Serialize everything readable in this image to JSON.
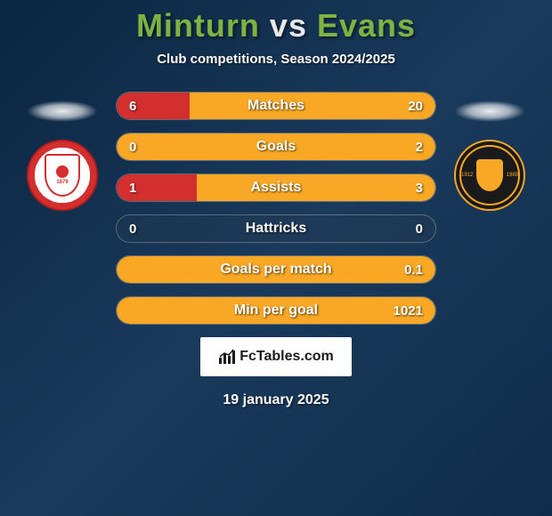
{
  "title": {
    "player1": "Minturn",
    "vs": "vs",
    "player2": "Evans"
  },
  "subtitle": "Club competitions, Season 2024/2025",
  "colors": {
    "player1_fill": "#d32f2f",
    "player2_fill": "#f9a825",
    "neutral_fill": "#6b6b6b"
  },
  "stats": [
    {
      "label": "Matches",
      "left_val": "6",
      "right_val": "20",
      "left_pct": 23,
      "right_pct": 77,
      "left_color": "#d32f2f",
      "right_color": "#f9a825"
    },
    {
      "label": "Goals",
      "left_val": "0",
      "right_val": "2",
      "left_pct": 0,
      "right_pct": 100,
      "left_color": "#d32f2f",
      "right_color": "#f9a825"
    },
    {
      "label": "Assists",
      "left_val": "1",
      "right_val": "3",
      "left_pct": 25,
      "right_pct": 75,
      "left_color": "#d32f2f",
      "right_color": "#f9a825"
    },
    {
      "label": "Hattricks",
      "left_val": "0",
      "right_val": "0",
      "left_pct": 0,
      "right_pct": 0,
      "left_color": "#6b6b6b",
      "right_color": "#6b6b6b"
    },
    {
      "label": "Goals per match",
      "left_val": "",
      "right_val": "0.1",
      "left_pct": 0,
      "right_pct": 100,
      "left_color": "#d32f2f",
      "right_color": "#f9a825"
    },
    {
      "label": "Min per goal",
      "left_val": "",
      "right_val": "1021",
      "left_pct": 0,
      "right_pct": 100,
      "left_color": "#d32f2f",
      "right_color": "#f9a825"
    }
  ],
  "footer": {
    "brand": "FcTables.com"
  },
  "date": "19 january 2025",
  "badges": {
    "left": {
      "year": "1879"
    },
    "right": {
      "year_left": "1912",
      "year_right": "1989"
    }
  }
}
